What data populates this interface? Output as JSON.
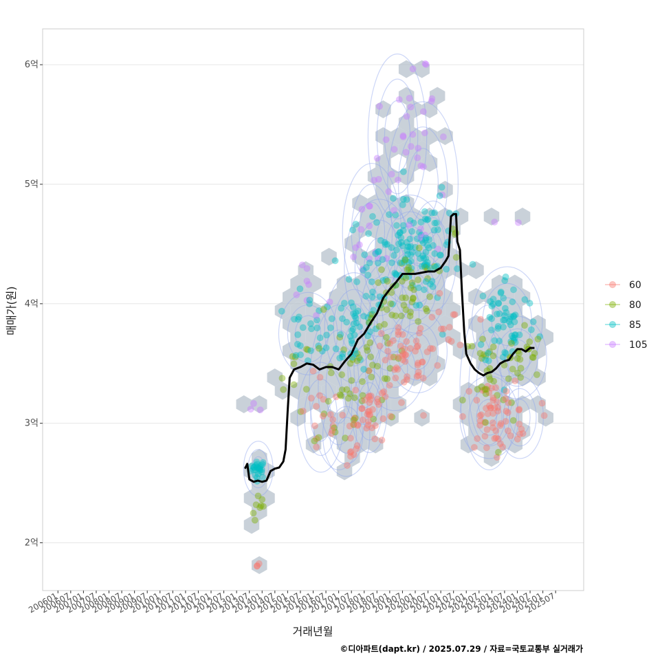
{
  "chart_data": {
    "type": "scatter",
    "xlabel": "거래년월",
    "ylabel": "매매가(원)",
    "caption": "©디아파트(dapt.kr) / 2025.07.29 / 자료=국토교통부 실거래가",
    "x_tick_labels": [
      "200601",
      "200607",
      "200701",
      "200707",
      "200801",
      "200807",
      "200901",
      "200907",
      "201001",
      "201007",
      "201101",
      "201107",
      "201201",
      "201207",
      "201301",
      "201307",
      "201401",
      "201407",
      "201501",
      "201507",
      "201601",
      "201607",
      "201701",
      "201707",
      "201801",
      "201807",
      "201901",
      "201907",
      "202001",
      "202007",
      "202101",
      "202107",
      "202201",
      "202207",
      "202301",
      "202307",
      "202401",
      "202407",
      "202501",
      "202507"
    ],
    "x_range": [
      2005.4,
      2026.6
    ],
    "y_range": [
      1.6,
      6.3
    ],
    "y_ticks": [
      {
        "value": 2,
        "label": "2억"
      },
      {
        "value": 3,
        "label": "3억"
      },
      {
        "value": 4,
        "label": "4억"
      },
      {
        "value": 5,
        "label": "5억"
      },
      {
        "value": 6,
        "label": "6억"
      }
    ],
    "grid": true,
    "legend": {
      "position": "right",
      "title": "",
      "entries": [
        {
          "label": "60",
          "color": "#F8766D"
        },
        {
          "label": "80",
          "color": "#7CAE00"
        },
        {
          "label": "85",
          "color": "#00BFC4"
        },
        {
          "label": "105",
          "color": "#C77CFF"
        }
      ]
    },
    "trend_line": {
      "name": "median",
      "color": "#000000",
      "points": [
        [
          2013.33,
          2.62
        ],
        [
          2013.42,
          2.66
        ],
        [
          2013.5,
          2.53
        ],
        [
          2013.67,
          2.51
        ],
        [
          2013.83,
          2.52
        ],
        [
          2014.0,
          2.51
        ],
        [
          2014.17,
          2.52
        ],
        [
          2014.33,
          2.6
        ],
        [
          2014.5,
          2.62
        ],
        [
          2014.67,
          2.63
        ],
        [
          2014.83,
          2.68
        ],
        [
          2014.92,
          2.78
        ],
        [
          2015.0,
          3.1
        ],
        [
          2015.08,
          3.38
        ],
        [
          2015.25,
          3.45
        ],
        [
          2015.5,
          3.47
        ],
        [
          2015.75,
          3.5
        ],
        [
          2016.0,
          3.49
        ],
        [
          2016.25,
          3.45
        ],
        [
          2016.5,
          3.47
        ],
        [
          2016.75,
          3.47
        ],
        [
          2017.0,
          3.45
        ],
        [
          2017.25,
          3.52
        ],
        [
          2017.5,
          3.58
        ],
        [
          2017.75,
          3.7
        ],
        [
          2018.0,
          3.75
        ],
        [
          2018.25,
          3.84
        ],
        [
          2018.5,
          3.92
        ],
        [
          2018.75,
          4.05
        ],
        [
          2019.0,
          4.12
        ],
        [
          2019.25,
          4.18
        ],
        [
          2019.5,
          4.25
        ],
        [
          2019.75,
          4.25
        ],
        [
          2020.0,
          4.25
        ],
        [
          2020.25,
          4.26
        ],
        [
          2020.5,
          4.27
        ],
        [
          2020.75,
          4.27
        ],
        [
          2021.0,
          4.3
        ],
        [
          2021.2,
          4.36
        ],
        [
          2021.3,
          4.4
        ],
        [
          2021.4,
          4.73
        ],
        [
          2021.5,
          4.75
        ],
        [
          2021.6,
          4.75
        ],
        [
          2021.65,
          4.52
        ],
        [
          2021.75,
          4.45
        ],
        [
          2021.83,
          4.1
        ],
        [
          2021.92,
          3.76
        ],
        [
          2022.0,
          3.58
        ],
        [
          2022.17,
          3.5
        ],
        [
          2022.33,
          3.45
        ],
        [
          2022.5,
          3.42
        ],
        [
          2022.67,
          3.4
        ],
        [
          2022.83,
          3.42
        ],
        [
          2023.0,
          3.43
        ],
        [
          2023.17,
          3.46
        ],
        [
          2023.33,
          3.5
        ],
        [
          2023.5,
          3.52
        ],
        [
          2023.67,
          3.53
        ],
        [
          2023.83,
          3.58
        ],
        [
          2024.0,
          3.62
        ],
        [
          2024.17,
          3.62
        ],
        [
          2024.33,
          3.6
        ],
        [
          2024.5,
          3.63
        ],
        [
          2024.67,
          3.63
        ]
      ]
    },
    "point_clusters": [
      {
        "series": "85",
        "x": 2013.85,
        "y": 2.62,
        "sx": 0.15,
        "sy": 0.04,
        "n": 25
      },
      {
        "series": "80",
        "x": 2013.9,
        "y": 2.27,
        "sx": 0.15,
        "sy": 0.06,
        "n": 8
      },
      {
        "series": "60",
        "x": 2013.85,
        "y": 1.82,
        "sx": 0.05,
        "sy": 0.02,
        "n": 3
      },
      {
        "series": "105",
        "x": 2013.85,
        "y": 3.12,
        "sx": 0.15,
        "sy": 0.03,
        "n": 3
      },
      {
        "series": "80",
        "x": 2015.3,
        "y": 3.4,
        "sx": 0.3,
        "sy": 0.15,
        "n": 10
      },
      {
        "series": "85",
        "x": 2015.8,
        "y": 3.75,
        "sx": 0.5,
        "sy": 0.15,
        "n": 25
      },
      {
        "series": "105",
        "x": 2015.8,
        "y": 4.1,
        "sx": 0.4,
        "sy": 0.15,
        "n": 8
      },
      {
        "series": "60",
        "x": 2016.3,
        "y": 3.05,
        "sx": 0.4,
        "sy": 0.2,
        "n": 15
      },
      {
        "series": "80",
        "x": 2017.0,
        "y": 3.3,
        "sx": 0.5,
        "sy": 0.3,
        "n": 25
      },
      {
        "series": "60",
        "x": 2017.3,
        "y": 2.9,
        "sx": 0.4,
        "sy": 0.15,
        "n": 15
      },
      {
        "series": "85",
        "x": 2017.6,
        "y": 3.8,
        "sx": 0.5,
        "sy": 0.2,
        "n": 40
      },
      {
        "series": "80",
        "x": 2018.0,
        "y": 3.45,
        "sx": 0.4,
        "sy": 0.2,
        "n": 20
      },
      {
        "series": "60",
        "x": 2018.2,
        "y": 3.1,
        "sx": 0.3,
        "sy": 0.15,
        "n": 30
      },
      {
        "series": "105",
        "x": 2018.3,
        "y": 4.6,
        "sx": 0.5,
        "sy": 0.25,
        "n": 15
      },
      {
        "series": "85",
        "x": 2018.6,
        "y": 4.3,
        "sx": 0.6,
        "sy": 0.25,
        "n": 40
      },
      {
        "series": "80",
        "x": 2019.0,
        "y": 3.9,
        "sx": 0.5,
        "sy": 0.2,
        "n": 25
      },
      {
        "series": "60",
        "x": 2019.2,
        "y": 3.45,
        "sx": 0.5,
        "sy": 0.15,
        "n": 25
      },
      {
        "series": "105",
        "x": 2019.3,
        "y": 5.4,
        "sx": 0.5,
        "sy": 0.3,
        "n": 15
      },
      {
        "series": "85",
        "x": 2019.8,
        "y": 4.45,
        "sx": 0.6,
        "sy": 0.2,
        "n": 70
      },
      {
        "series": "80",
        "x": 2020.0,
        "y": 4.1,
        "sx": 0.5,
        "sy": 0.15,
        "n": 30
      },
      {
        "series": "60",
        "x": 2020.1,
        "y": 3.6,
        "sx": 0.5,
        "sy": 0.15,
        "n": 30
      },
      {
        "series": "105",
        "x": 2020.3,
        "y": 5.0,
        "sx": 0.6,
        "sy": 0.3,
        "n": 15
      },
      {
        "series": "85",
        "x": 2020.7,
        "y": 4.4,
        "sx": 0.4,
        "sy": 0.2,
        "n": 25
      },
      {
        "series": "105",
        "x": 2020.3,
        "y": 5.85,
        "sx": 0.3,
        "sy": 0.1,
        "n": 5
      },
      {
        "series": "85",
        "x": 2021.3,
        "y": 4.75,
        "sx": 0.4,
        "sy": 0.25,
        "n": 10
      },
      {
        "series": "60",
        "x": 2021.3,
        "y": 3.75,
        "sx": 0.4,
        "sy": 0.15,
        "n": 10
      },
      {
        "series": "80",
        "x": 2021.2,
        "y": 4.5,
        "sx": 0.3,
        "sy": 0.2,
        "n": 5
      },
      {
        "series": "60",
        "x": 2022.9,
        "y": 3.05,
        "sx": 0.5,
        "sy": 0.15,
        "n": 45
      },
      {
        "series": "80",
        "x": 2022.9,
        "y": 3.3,
        "sx": 0.5,
        "sy": 0.3,
        "n": 25
      },
      {
        "series": "85",
        "x": 2023.6,
        "y": 3.85,
        "sx": 0.6,
        "sy": 0.2,
        "n": 60
      },
      {
        "series": "80",
        "x": 2024.0,
        "y": 3.55,
        "sx": 0.5,
        "sy": 0.15,
        "n": 25
      },
      {
        "series": "105",
        "x": 2023.5,
        "y": 4.75,
        "sx": 0.5,
        "sy": 0.05,
        "n": 2
      },
      {
        "series": "60",
        "x": 2024.1,
        "y": 3.05,
        "sx": 0.4,
        "sy": 0.15,
        "n": 15
      }
    ]
  }
}
